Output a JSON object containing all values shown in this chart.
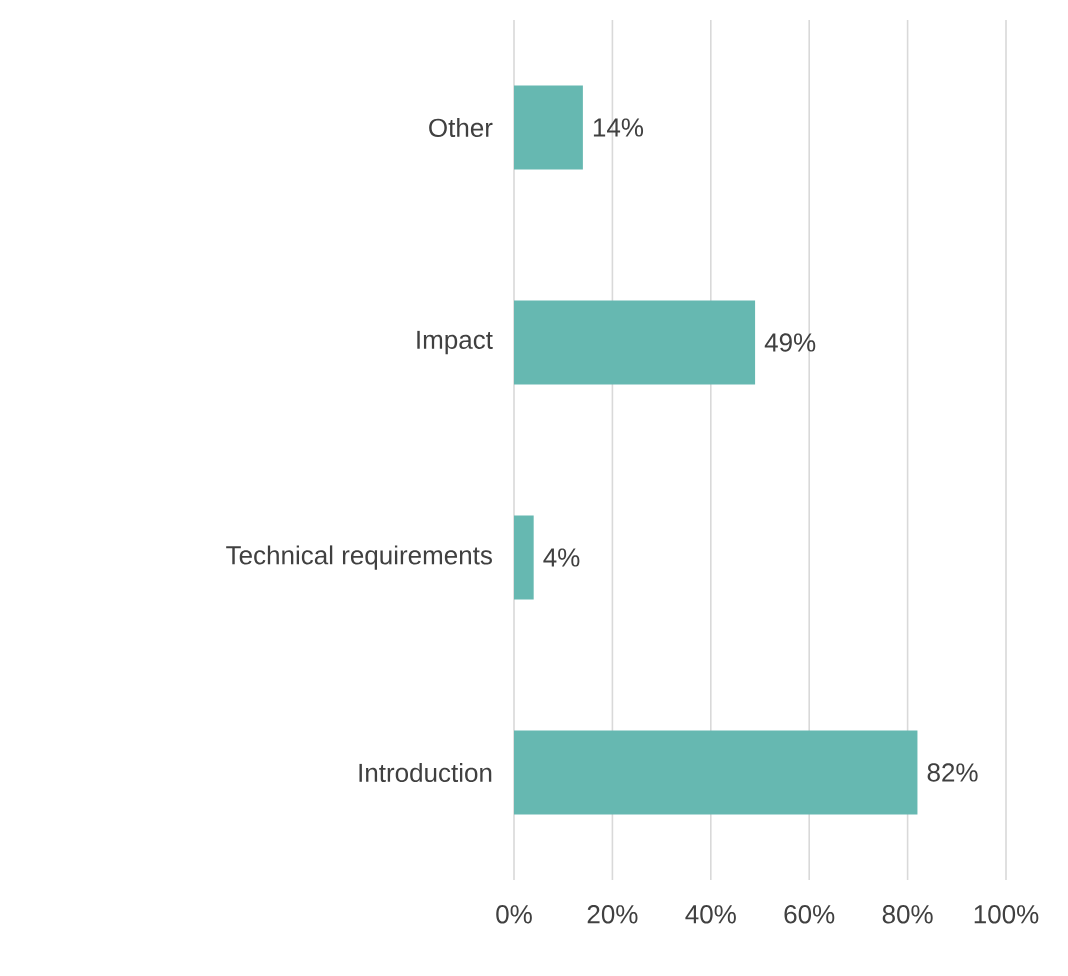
{
  "chart_data": {
    "type": "bar",
    "orientation": "horizontal",
    "categories": [
      "Other",
      "Impact",
      "Technical requirements",
      "Introduction"
    ],
    "values": [
      14,
      49,
      4,
      82
    ],
    "value_labels": [
      "14%",
      "49%",
      "4%",
      "82%"
    ],
    "color": "#66b8b1",
    "xlim": [
      0,
      100
    ],
    "xticks": [
      {
        "value": 0,
        "label": "0%"
      },
      {
        "value": 20,
        "label": "20%"
      },
      {
        "value": 40,
        "label": "40%"
      },
      {
        "value": 60,
        "label": "60%"
      },
      {
        "value": 80,
        "label": "80%"
      },
      {
        "value": 100,
        "label": "100%"
      }
    ],
    "grid": "x"
  }
}
